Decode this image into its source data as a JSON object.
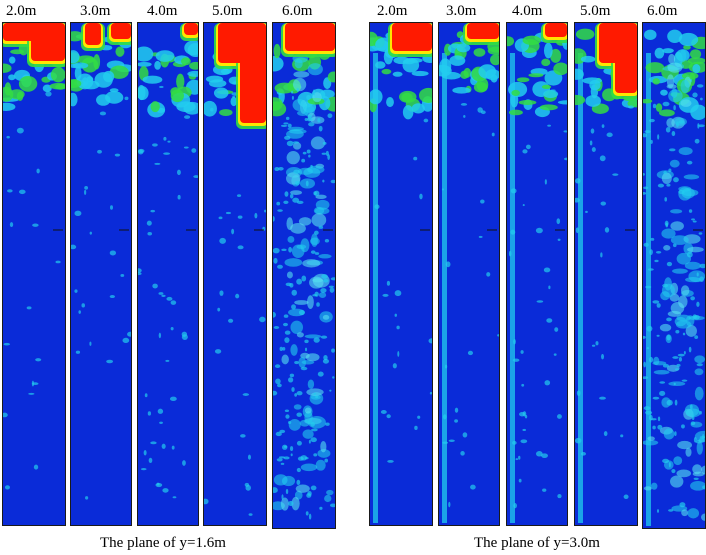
{
  "groups": [
    {
      "caption": "The plane of y=1.6m",
      "labels": [
        "2.0m",
        "3.0m",
        "4.0m",
        "5.0m",
        "6.0m"
      ]
    },
    {
      "caption": "The plane of y=3.0m",
      "labels": [
        "2.0m",
        "3.0m",
        "4.0m",
        "5.0m",
        "6.0m"
      ]
    }
  ],
  "colors": {
    "background_blue": "#0a2bd8",
    "red": "#ff1a00",
    "yellow": "#ffe600",
    "green": "#33dd44",
    "cyan": "#22ccee",
    "light_cyan": "#55e0f0"
  }
}
